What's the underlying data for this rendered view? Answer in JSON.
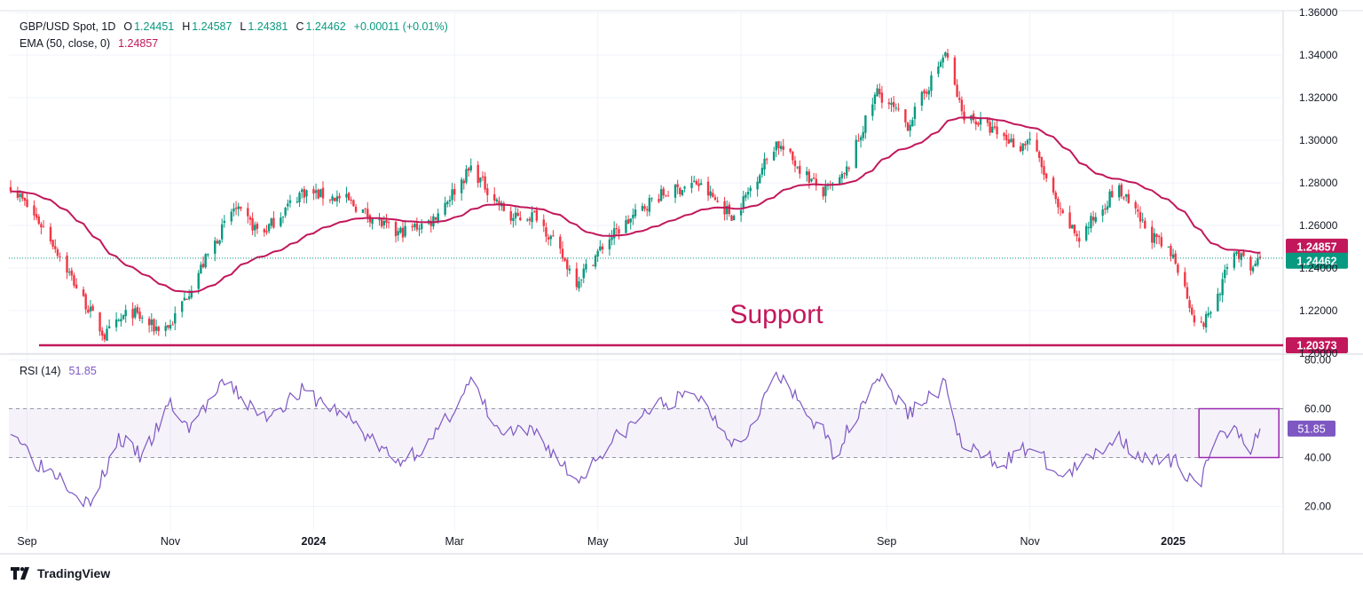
{
  "legend": {
    "symbol": "GBP/USD Spot, 1D",
    "o_label": "O",
    "o_value": "1.24451",
    "h_label": "H",
    "h_value": "1.24587",
    "l_label": "L",
    "l_value": "1.24381",
    "c_label": "C",
    "c_value": "1.24462",
    "change": "+0.00011 (+0.01%)",
    "ema_label": "EMA (50, close, 0)",
    "ema_value": "1.24857",
    "rsi_label": "RSI (14)",
    "rsi_value": "51.85"
  },
  "brand": "TradingView",
  "colors": {
    "up": "#089981",
    "down": "#f23645",
    "ema": "#c2185b",
    "rsi": "#7e57c2",
    "support": "#c2185b"
  },
  "chart_data": [
    {
      "type": "candlestick",
      "ylim": [
        1.2,
        1.36
      ],
      "yticks": [
        "1.20000",
        "1.22000",
        "1.24000",
        "1.26000",
        "1.28000",
        "1.30000",
        "1.32000",
        "1.34000",
        "1.36000"
      ],
      "xticks": [
        "Sep",
        "Nov",
        "2024",
        "Mar",
        "May",
        "Jul",
        "Sep",
        "Nov",
        "2025"
      ],
      "close_anchors": [
        [
          "2023-08-25",
          1.279
        ],
        [
          "2023-09-10",
          1.256
        ],
        [
          "2023-09-25",
          1.225
        ],
        [
          "2023-10-04",
          1.208
        ],
        [
          "2023-10-15",
          1.22
        ],
        [
          "2023-10-25",
          1.212
        ],
        [
          "2023-11-01",
          1.213
        ],
        [
          "2023-11-15",
          1.242
        ],
        [
          "2023-11-28",
          1.268
        ],
        [
          "2023-12-10",
          1.256
        ],
        [
          "2023-12-27",
          1.276
        ],
        [
          "2024-01-15",
          1.272
        ],
        [
          "2024-02-05",
          1.256
        ],
        [
          "2024-02-20",
          1.262
        ],
        [
          "2024-03-08",
          1.287
        ],
        [
          "2024-03-25",
          1.263
        ],
        [
          "2024-04-05",
          1.265
        ],
        [
          "2024-04-22",
          1.234
        ],
        [
          "2024-05-05",
          1.253
        ],
        [
          "2024-05-25",
          1.273
        ],
        [
          "2024-06-12",
          1.28
        ],
        [
          "2024-06-28",
          1.264
        ],
        [
          "2024-07-16",
          1.299
        ],
        [
          "2024-08-05",
          1.275
        ],
        [
          "2024-08-14",
          1.283
        ],
        [
          "2024-08-28",
          1.323
        ],
        [
          "2024-09-10",
          1.307
        ],
        [
          "2024-09-26",
          1.341
        ],
        [
          "2024-10-03",
          1.313
        ],
        [
          "2024-10-20",
          1.302
        ],
        [
          "2024-10-28",
          1.297
        ],
        [
          "2024-11-01",
          1.301
        ],
        [
          "2024-11-14",
          1.265
        ],
        [
          "2024-11-22",
          1.254
        ],
        [
          "2024-12-08",
          1.278
        ],
        [
          "2024-12-22",
          1.256
        ],
        [
          "2025-01-02",
          1.244
        ],
        [
          "2025-01-12",
          1.21
        ],
        [
          "2025-01-20",
          1.227
        ],
        [
          "2025-01-27",
          1.249
        ],
        [
          "2025-02-03",
          1.239
        ],
        [
          "2025-02-07",
          1.2446
        ]
      ],
      "last_close": "1.24462",
      "series": [
        {
          "name": "EMA (50, close, 0)",
          "last_value": "1.24857"
        }
      ],
      "annotations": {
        "support_label": "Support",
        "support_level": 1.20373,
        "support_value": "1.20373"
      }
    },
    {
      "type": "line",
      "ylim": [
        10,
        82
      ],
      "yticks": [
        "20.00",
        "40.00",
        "60.00",
        "80.00"
      ],
      "band": [
        40,
        60
      ],
      "series": [
        {
          "name": "RSI (14)",
          "last_value": "51.85",
          "anchors": [
            [
              "2023-08-25",
              53
            ],
            [
              "2023-09-05",
              38
            ],
            [
              "2023-09-15",
              33
            ],
            [
              "2023-09-28",
              20
            ],
            [
              "2023-10-10",
              48
            ],
            [
              "2023-10-20",
              40
            ],
            [
              "2023-11-01",
              62
            ],
            [
              "2023-11-08",
              52
            ],
            [
              "2023-11-25",
              71
            ],
            [
              "2023-12-10",
              56
            ],
            [
              "2023-12-27",
              67
            ],
            [
              "2024-01-15",
              57
            ],
            [
              "2024-02-05",
              38
            ],
            [
              "2024-02-20",
              46
            ],
            [
              "2024-03-08",
              71
            ],
            [
              "2024-03-20",
              50
            ],
            [
              "2024-04-05",
              50
            ],
            [
              "2024-04-22",
              30
            ],
            [
              "2024-05-05",
              45
            ],
            [
              "2024-05-25",
              61
            ],
            [
              "2024-06-12",
              66
            ],
            [
              "2024-06-30",
              44
            ],
            [
              "2024-07-16",
              74
            ],
            [
              "2024-08-05",
              50
            ],
            [
              "2024-08-10",
              41
            ],
            [
              "2024-08-28",
              74
            ],
            [
              "2024-09-10",
              58
            ],
            [
              "2024-09-26",
              70
            ],
            [
              "2024-10-03",
              44
            ],
            [
              "2024-10-20",
              38
            ],
            [
              "2024-10-28",
              42
            ],
            [
              "2024-11-01",
              45
            ],
            [
              "2024-11-14",
              32
            ],
            [
              "2024-11-22",
              36
            ],
            [
              "2024-12-08",
              49
            ],
            [
              "2024-12-22",
              38
            ],
            [
              "2025-01-02",
              38
            ],
            [
              "2025-01-12",
              29
            ],
            [
              "2025-01-20",
              47
            ],
            [
              "2025-01-27",
              54
            ],
            [
              "2025-02-03",
              44
            ],
            [
              "2025-02-07",
              51.85
            ]
          ]
        }
      ]
    }
  ]
}
